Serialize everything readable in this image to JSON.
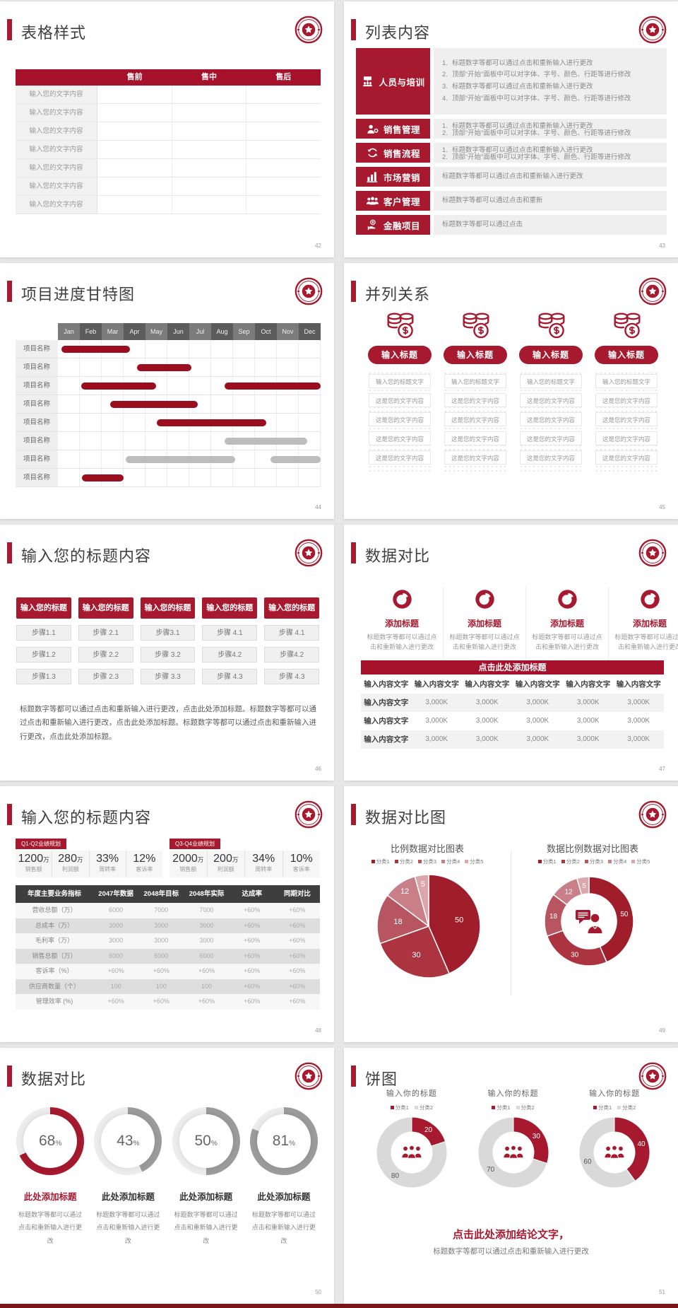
{
  "theme": {
    "accent_red": "#A6192E",
    "header_red": "#A6122B",
    "bar_red": "#9A0E20",
    "bar_gray": "#BDBDBD",
    "footer_strip": "#7A141B",
    "pie_colors": [
      "#A01E2B",
      "#AC3340",
      "#B75561",
      "#C97F88",
      "#DCA6AC"
    ],
    "donut_gray": "#D9D9D9",
    "gauge_gray": "#9B9B9B",
    "gauge_track": "#ECECEC"
  },
  "slide_table": {
    "title": "表格样式",
    "page": "42",
    "headers": [
      "售前",
      "售中",
      "售后"
    ],
    "rows": [
      "输入您的文字内容",
      "输入您的文字内容",
      "输入您的文字内容",
      "输入您的文字内容",
      "输入您的文字内容",
      "输入您的文字内容",
      "输入您的文字内容"
    ]
  },
  "slide_list": {
    "title": "列表内容",
    "page": "43",
    "items": [
      {
        "icon": "org-people-icon",
        "label": "人员与培训",
        "numbered": true,
        "lines": [
          "标题数字等都可以通过点击和重新输入进行更改",
          "顶部“开始”面板中可以对字体、字号、颜色、行距等进行修改",
          "标题数字等都可以通过点击和重新输入进行更改",
          "顶部“开始”面板中可以对字体、字号、颜色、行距等进行修改"
        ]
      },
      {
        "icon": "person-gear-icon",
        "label": "销售管理",
        "numbered": true,
        "lines": [
          "标题数字等都可以通过点击和重新输入进行更改",
          "顶部“开始”面板中可以对字体、字号、颜色、行距等进行修改"
        ]
      },
      {
        "icon": "cycle-arrows-icon",
        "label": "销售流程",
        "numbered": true,
        "lines": [
          "标题数字等都可以通过点击和重新输入进行更改",
          "顶部“开始”面板中可以对字体、字号、颜色、行距等进行修改"
        ]
      },
      {
        "icon": "bar-chart-icon",
        "label": "市场营销",
        "numbered": false,
        "lines": [
          "标题数字等都可以通过点击和重新输入进行更改"
        ]
      },
      {
        "icon": "people-group-icon",
        "label": "客户管理",
        "numbered": false,
        "lines": [
          "标题数字等都可以通过点击和重新"
        ]
      },
      {
        "icon": "coin-hand-icon",
        "label": "金融项目",
        "numbered": false,
        "lines": [
          "标题数字等都可以通过点击"
        ]
      }
    ]
  },
  "slide_gantt": {
    "title": "项目进度甘特图",
    "page": "44",
    "months": [
      "Jan",
      "Feb",
      "Mar",
      "Apr",
      "May",
      "Jun",
      "Jul",
      "Aug",
      "Sep",
      "Oct",
      "Nov",
      "Dec"
    ],
    "row_label": "项目名称",
    "rows": [
      {
        "bars": [
          {
            "start": 0.15,
            "end": 3.3,
            "color": "red"
          }
        ]
      },
      {
        "bars": [
          {
            "start": 3.6,
            "end": 6.1,
            "color": "red"
          }
        ]
      },
      {
        "bars": [
          {
            "start": 1.05,
            "end": 4.5,
            "color": "red"
          },
          {
            "start": 7.6,
            "end": 12,
            "color": "red"
          }
        ]
      },
      {
        "bars": [
          {
            "start": 2.4,
            "end": 6.4,
            "color": "red"
          }
        ]
      },
      {
        "bars": [
          {
            "start": 4.5,
            "end": 9.5,
            "color": "red"
          }
        ]
      },
      {
        "bars": [
          {
            "start": 7.6,
            "end": 11.4,
            "color": "gray"
          }
        ]
      },
      {
        "bars": [
          {
            "start": 3.1,
            "end": 8.1,
            "color": "gray"
          },
          {
            "start": 9.7,
            "end": 12,
            "color": "gray"
          }
        ]
      },
      {
        "bars": [
          {
            "start": 1.1,
            "end": 3.0,
            "color": "red"
          }
        ]
      }
    ]
  },
  "slide_parallel": {
    "title": "并列关系",
    "page": "45",
    "columns": [
      {
        "icon": "coins-icon",
        "header": "输入标题",
        "rows": [
          "输入您的标题文字",
          "这是您的文字内容",
          "这是您的文字内容",
          "这是您的文字内容",
          "这是您的文字内容"
        ]
      },
      {
        "icon": "coins-icon",
        "header": "输入标题",
        "rows": [
          "输入您的标题文字",
          "这是您的文字内容",
          "这是您的文字内容",
          "这是您的文字内容",
          "这是您的文字内容"
        ]
      },
      {
        "icon": "coins-icon",
        "header": "输入标题",
        "rows": [
          "输入您的标题文字",
          "这是您的文字内容",
          "这是您的文字内容",
          "这是您的文字内容",
          "这是您的文字内容"
        ]
      },
      {
        "icon": "coins-icon",
        "header": "输入标题",
        "rows": [
          "输入您的标题文字",
          "这是您的文字内容",
          "这是您的文字内容",
          "这是您的文字内容",
          "这是您的文字内容"
        ]
      }
    ]
  },
  "slide_steps": {
    "title": "输入您的标题内容",
    "page": "46",
    "columns": [
      {
        "header": "输入您的标题",
        "steps": [
          "步骤1.1",
          "步骤1.2",
          "步骤1.3"
        ]
      },
      {
        "header": "输入您的标题",
        "steps": [
          "步骤 2.1",
          "步骤 2.2",
          "步骤 2.3"
        ]
      },
      {
        "header": "输入您的标题",
        "steps": [
          "步骤3.1",
          "步骤 3.2",
          "步骤 3.3"
        ]
      },
      {
        "header": "输入您的标题",
        "steps": [
          "步骤 4.1",
          "步骤4.2",
          "步骤 4.3"
        ]
      },
      {
        "header": "输入您的标题",
        "steps": [
          "步骤 4.1",
          "步骤4.2",
          "步骤 4.3"
        ]
      }
    ],
    "paragraph": "标题数字等都可以通过点击和重新输入进行更改，点击此处添加标题。标题数字等都可以通过点击和重新输入进行更改，点击此处添加标题。标题数字等都可以通过点击和重新输入进行更改，点击此处添加标题。"
  },
  "slide_compare": {
    "title": "数据对比",
    "page": "47",
    "features": [
      {
        "icon": "pie-icon",
        "title": "添加标题",
        "desc": "标题数字等都可以通过点击和重新输入进行更改"
      },
      {
        "icon": "pie-icon",
        "title": "添加标题",
        "desc": "标题数字等都可以通过点击和重新输入进行更改"
      },
      {
        "icon": "pie-icon",
        "title": "添加标题",
        "desc": "标题数字等都可以通过点击和重新输入进行更改"
      },
      {
        "icon": "pie-icon",
        "title": "添加标题",
        "desc": "标题数字等都可以通过点击和重新输入进行更改"
      }
    ],
    "banner": "点击此处添加标题",
    "table": {
      "headers": [
        "输入内容文字",
        "输入内容文字",
        "输入内容文字",
        "输入内容文字",
        "输入内容文字",
        "输入内容文字"
      ],
      "rows": [
        {
          "label": "输入内容文字",
          "values": [
            "3,000K",
            "3,000K",
            "3,000K",
            "3,000K",
            "3,000K"
          ]
        },
        {
          "label": "输入内容文字",
          "values": [
            "3,000K",
            "3,000K",
            "3,000K",
            "3,000K",
            "3,000K"
          ]
        },
        {
          "label": "输入内容文字",
          "values": [
            "3,000K",
            "3,000K",
            "3,000K",
            "3,000K",
            "3,000K"
          ]
        }
      ]
    }
  },
  "slide_kpi": {
    "title": "输入您的标题内容",
    "page": "48",
    "groups": [
      {
        "tag": "Q1-Q2业绩规划",
        "stats": [
          {
            "value": "1200",
            "unit": "万",
            "label": "销售额"
          },
          {
            "value": "280",
            "unit": "万",
            "label": "利润额"
          },
          {
            "value": "33%",
            "unit": "",
            "label": "周转率"
          },
          {
            "value": "12%",
            "unit": "",
            "label": "客诉率"
          }
        ]
      },
      {
        "tag": "Q3-Q4业绩规划",
        "stats": [
          {
            "value": "2000",
            "unit": "万",
            "label": "销售额"
          },
          {
            "value": "200",
            "unit": "万",
            "label": "利润额"
          },
          {
            "value": "34%",
            "unit": "",
            "label": "周转率"
          },
          {
            "value": "10%",
            "unit": "",
            "label": "客诉率"
          }
        ]
      }
    ],
    "table": {
      "headers": [
        "年度主要业务指标",
        "2047年数据",
        "2048年目标",
        "2048年实际",
        "达成率",
        "同期对比"
      ],
      "rows": [
        [
          "营收总额（万）",
          "6000",
          "7000",
          "7000",
          "+60%",
          "+60%"
        ],
        [
          "总成本（万）",
          "3000",
          "3000",
          "3000",
          "+60%",
          "+60%"
        ],
        [
          "毛利率（万）",
          "3000",
          "3000",
          "3000",
          "+60%",
          "+60%"
        ],
        [
          "销售总额（万）",
          "6000",
          "6000",
          "6000",
          "+60%",
          "+60%"
        ],
        [
          "客诉率（%）",
          "+60%",
          "+60%",
          "+60%",
          "+60%",
          "+60%"
        ],
        [
          "供应商数量（个）",
          "100",
          "100",
          "100",
          "+60%",
          "+60%"
        ],
        [
          "管理效率 (%)",
          "+60%",
          "+60%",
          "+60%",
          "+60%",
          "+60%"
        ]
      ]
    }
  },
  "slide_pies": {
    "title": "数据对比图",
    "page": "49",
    "pie": {
      "title": "比例数据对比图表",
      "legend": [
        "分类1",
        "分类2",
        "分类3",
        "分类4",
        "分类5"
      ],
      "values": [
        50,
        30,
        18,
        12,
        5
      ]
    },
    "donut": {
      "title": "数据比例数据对比图表",
      "legend": [
        "分类1",
        "分类2",
        "分类3",
        "分类4",
        "分类5"
      ],
      "values": [
        50,
        30,
        18,
        12,
        5
      ],
      "center_icon": "person-chat-icon"
    }
  },
  "slide_gauges": {
    "title": "数据对比",
    "page": "50",
    "gauges": [
      {
        "pct": 68,
        "accent": true
      },
      {
        "pct": 43,
        "accent": false
      },
      {
        "pct": 50,
        "accent": false
      },
      {
        "pct": 81,
        "accent": false
      }
    ],
    "item_title": "此处添加标题",
    "item_desc": "标题数字等都可以通过点击和重新输入进行更改"
  },
  "slide_donuts": {
    "title": "饼图",
    "page": "51",
    "charts": [
      {
        "title": "输入你的标题",
        "legend": [
          "分类1",
          "分类2"
        ],
        "values": [
          20,
          80
        ],
        "center_icon": "people-3-icon"
      },
      {
        "title": "输入你的标题",
        "legend": [
          "分类1",
          "分类2"
        ],
        "values": [
          30,
          70
        ],
        "center_icon": "people-3-icon"
      },
      {
        "title": "输入你的标题",
        "legend": [
          "分类1",
          "分类2"
        ],
        "values": [
          40,
          60
        ],
        "center_icon": "people-3-icon"
      }
    ],
    "conclusion": "点击此处添加结论文字，",
    "note": "标题数字等都可以通过点击和重新输入进行更改"
  },
  "chart_data": [
    {
      "type": "bar",
      "subtype": "gantt",
      "title": "项目进度甘特图",
      "categories": [
        "Jan",
        "Feb",
        "Mar",
        "Apr",
        "May",
        "Jun",
        "Jul",
        "Aug",
        "Sep",
        "Oct",
        "Nov",
        "Dec"
      ],
      "rows": [
        [
          {
            "start": 0.15,
            "end": 3.3,
            "color": "red"
          }
        ],
        [
          {
            "start": 3.6,
            "end": 6.1,
            "color": "red"
          }
        ],
        [
          {
            "start": 1.05,
            "end": 4.5,
            "color": "red"
          },
          {
            "start": 7.6,
            "end": 12,
            "color": "red"
          }
        ],
        [
          {
            "start": 2.4,
            "end": 6.4,
            "color": "red"
          }
        ],
        [
          {
            "start": 4.5,
            "end": 9.5,
            "color": "red"
          }
        ],
        [
          {
            "start": 7.6,
            "end": 11.4,
            "color": "gray"
          }
        ],
        [
          {
            "start": 3.1,
            "end": 8.1,
            "color": "gray"
          },
          {
            "start": 9.7,
            "end": 12,
            "color": "gray"
          }
        ],
        [
          {
            "start": 1.1,
            "end": 3.0,
            "color": "red"
          }
        ]
      ]
    },
    {
      "type": "pie",
      "title": "比例数据对比图表",
      "labels": [
        "分类1",
        "分类2",
        "分类3",
        "分类4",
        "分类5"
      ],
      "values": [
        50,
        30,
        18,
        12,
        5
      ],
      "legend_position": "top"
    },
    {
      "type": "pie",
      "subtype": "donut",
      "title": "数据比例数据对比图表",
      "labels": [
        "分类1",
        "分类2",
        "分类3",
        "分类4",
        "分类5"
      ],
      "values": [
        50,
        30,
        18,
        12,
        5
      ],
      "legend_position": "top"
    },
    {
      "type": "pie",
      "subtype": "gauge",
      "title": "数据对比",
      "values": [
        68,
        43,
        50,
        81
      ],
      "unit": "%"
    },
    {
      "type": "pie",
      "subtype": "donut",
      "title": "饼图",
      "labels": [
        "分类1",
        "分类2"
      ],
      "series": [
        {
          "name": "输入你的标题",
          "values": [
            20,
            80
          ]
        },
        {
          "name": "输入你的标题",
          "values": [
            30,
            70
          ]
        },
        {
          "name": "输入你的标题",
          "values": [
            40,
            60
          ]
        }
      ]
    }
  ]
}
